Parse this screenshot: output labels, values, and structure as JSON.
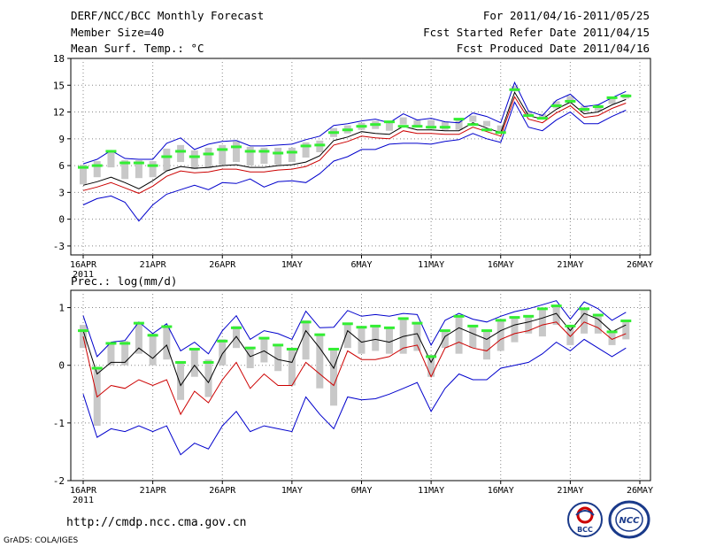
{
  "header": {
    "title": "DERF/NCC/BCC Monthly Forecast",
    "member_size": "Member Size=40",
    "variable": "Mean Surf. Temp.: °C",
    "period": "For 2011/04/16-2011/05/25",
    "started": "Fcst Started Refer Date 2011/04/15",
    "produced": "Fcst Produced Date 2011/04/16"
  },
  "footer": {
    "url": "http://cmdp.ncc.cma.gov.cn",
    "credit": "GrADS: COLA/IGES",
    "logo_left_text": "BCC",
    "logo_right_text": "NCC"
  },
  "colors": {
    "max": "#0000cc",
    "mean": "#000000",
    "min": "#cc0000",
    "bar": "#c8c8c8",
    "median": "#33ee33",
    "grid": "#888888"
  },
  "chart_data": [
    {
      "type": "line",
      "title": "Mean Surf. Temp.: °C",
      "xlabel": "",
      "ylabel": "°C",
      "ylim": [
        -4,
        18
      ],
      "yticks": [
        18,
        15,
        12,
        9,
        6,
        3,
        0,
        -3
      ],
      "x_start_label": "2011",
      "xticks": [
        {
          "day": 0,
          "label": "16APR"
        },
        {
          "day": 5,
          "label": "21APR"
        },
        {
          "day": 10,
          "label": "26APR"
        },
        {
          "day": 15,
          "label": "1MAY"
        },
        {
          "day": 20,
          "label": "6MAY"
        },
        {
          "day": 25,
          "label": "11MAY"
        },
        {
          "day": 30,
          "label": "16MAY"
        },
        {
          "day": 35,
          "label": "21MAY"
        },
        {
          "day": 40,
          "label": "26MAY"
        }
      ],
      "days": [
        0,
        1,
        2,
        3,
        4,
        5,
        6,
        7,
        8,
        9,
        10,
        11,
        12,
        13,
        14,
        15,
        16,
        17,
        18,
        19,
        20,
        21,
        22,
        23,
        24,
        25,
        26,
        27,
        28,
        29,
        30,
        31,
        32,
        33,
        34,
        35,
        36,
        37,
        38,
        39
      ],
      "series": [
        {
          "name": "max",
          "values": [
            6.2,
            6.7,
            7.7,
            6.8,
            6.7,
            6.7,
            8.5,
            9.1,
            7.8,
            8.4,
            8.7,
            8.8,
            8.2,
            8.2,
            8.3,
            8.4,
            8.9,
            9.3,
            10.5,
            10.7,
            11.0,
            11.2,
            10.8,
            11.8,
            11.1,
            11.3,
            10.9,
            10.8,
            11.9,
            11.5,
            10.8,
            15.3,
            12.1,
            11.6,
            13.3,
            14.0,
            12.6,
            12.8,
            13.6,
            14.3
          ]
        },
        {
          "name": "mean",
          "values": [
            3.8,
            4.2,
            4.7,
            4.1,
            3.4,
            4.3,
            5.4,
            5.9,
            5.7,
            5.8,
            6.0,
            6.1,
            5.8,
            5.8,
            6.0,
            6.1,
            6.4,
            7.1,
            8.8,
            9.2,
            9.8,
            9.6,
            9.5,
            10.4,
            10.0,
            10.0,
            9.9,
            9.9,
            10.8,
            10.2,
            9.7,
            14.2,
            11.6,
            11.2,
            12.3,
            13.1,
            11.8,
            12.0,
            12.8,
            13.4
          ]
        },
        {
          "name": "min",
          "values": [
            3.2,
            3.6,
            4.1,
            3.5,
            2.9,
            3.7,
            4.8,
            5.4,
            5.2,
            5.3,
            5.6,
            5.6,
            5.3,
            5.3,
            5.5,
            5.6,
            5.9,
            6.6,
            8.3,
            8.7,
            9.3,
            9.1,
            9.0,
            9.9,
            9.6,
            9.6,
            9.5,
            9.5,
            10.3,
            9.8,
            9.3,
            13.7,
            11.2,
            10.8,
            11.9,
            12.7,
            11.4,
            11.6,
            12.4,
            13.0
          ]
        },
        {
          "name": "lowest",
          "values": [
            1.6,
            2.3,
            2.6,
            1.9,
            -0.2,
            1.6,
            2.8,
            3.3,
            3.8,
            3.3,
            4.1,
            4.0,
            4.5,
            3.6,
            4.2,
            4.3,
            4.1,
            5.1,
            6.5,
            7.0,
            7.8,
            7.8,
            8.4,
            8.5,
            8.5,
            8.4,
            8.7,
            8.9,
            9.6,
            9.0,
            8.6,
            13.1,
            10.3,
            9.9,
            11.1,
            12.0,
            10.7,
            10.7,
            11.5,
            12.2
          ]
        },
        {
          "name": "median",
          "values": [
            5.8,
            6.0,
            7.6,
            6.3,
            6.3,
            6.0,
            7.0,
            7.6,
            7.0,
            7.3,
            7.8,
            8.1,
            7.6,
            7.6,
            7.4,
            7.5,
            8.2,
            8.3,
            9.7,
            10.0,
            10.4,
            10.6,
            10.9,
            10.4,
            10.4,
            10.3,
            10.3,
            11.2,
            10.6,
            10.0,
            9.7,
            14.5,
            11.6,
            11.3,
            12.7,
            13.2,
            12.3,
            12.6,
            13.6,
            13.8
          ]
        }
      ],
      "box_lo": [
        3.9,
        4.7,
        5.8,
        4.5,
        4.6,
        4.7,
        5.4,
        6.4,
        5.6,
        5.7,
        6.1,
        6.4,
        6.0,
        6.2,
        6.1,
        6.4,
        6.9,
        7.5,
        9.2,
        9.6,
        10.0,
        10.1,
        9.9,
        10.6,
        10.3,
        10.1,
        10.0,
        10.0,
        10.9,
        10.4,
        9.8,
        14.3,
        11.7,
        11.3,
        12.4,
        13.2,
        12.0,
        12.1,
        12.9,
        13.5
      ],
      "box_hi": [
        6.1,
        6.5,
        7.7,
        6.6,
        6.6,
        6.5,
        7.9,
        8.3,
        7.7,
        8.0,
        8.3,
        8.7,
        8.1,
        8.0,
        8.0,
        8.0,
        8.6,
        8.8,
        10.2,
        10.5,
        10.8,
        11.0,
        11.0,
        11.4,
        11.1,
        11.1,
        10.9,
        11.2,
        11.6,
        11.0,
        10.5,
        14.9,
        12.1,
        11.8,
        13.2,
        13.8,
        12.7,
        12.8,
        13.7,
        14.0
      ]
    },
    {
      "type": "line",
      "title": "Prec.: log(mm/d)",
      "xlabel": "",
      "ylabel": "log(mm/d)",
      "ylim": [
        -2.0,
        1.3
      ],
      "yticks": [
        1,
        0,
        -1,
        -2
      ],
      "x_start_label": "2011",
      "xticks": [
        {
          "day": 0,
          "label": "16APR"
        },
        {
          "day": 5,
          "label": "21APR"
        },
        {
          "day": 10,
          "label": "26APR"
        },
        {
          "day": 15,
          "label": "1MAY"
        },
        {
          "day": 20,
          "label": "6MAY"
        },
        {
          "day": 25,
          "label": "11MAY"
        },
        {
          "day": 30,
          "label": "16MAY"
        },
        {
          "day": 35,
          "label": "21MAY"
        },
        {
          "day": 40,
          "label": "26MAY"
        }
      ],
      "days": [
        0,
        1,
        2,
        3,
        4,
        5,
        6,
        7,
        8,
        9,
        10,
        11,
        12,
        13,
        14,
        15,
        16,
        17,
        18,
        19,
        20,
        21,
        22,
        23,
        24,
        25,
        26,
        27,
        28,
        29,
        30,
        31,
        32,
        33,
        34,
        35,
        36,
        37,
        38,
        39
      ],
      "series": [
        {
          "name": "max",
          "values": [
            0.86,
            0.15,
            0.4,
            0.43,
            0.75,
            0.55,
            0.72,
            0.25,
            0.4,
            0.2,
            0.6,
            0.86,
            0.45,
            0.6,
            0.55,
            0.45,
            0.94,
            0.65,
            0.66,
            0.95,
            0.85,
            0.88,
            0.85,
            0.9,
            0.88,
            0.35,
            0.78,
            0.9,
            0.8,
            0.75,
            0.85,
            0.93,
            0.98,
            1.05,
            1.12,
            0.8,
            1.1,
            0.98,
            0.78,
            0.92
          ]
        },
        {
          "name": "mean",
          "values": [
            0.6,
            -0.15,
            0.05,
            0.05,
            0.3,
            0.12,
            0.35,
            -0.35,
            0.0,
            -0.3,
            0.2,
            0.5,
            0.15,
            0.25,
            0.1,
            0.05,
            0.6,
            0.3,
            -0.05,
            0.6,
            0.4,
            0.45,
            0.4,
            0.5,
            0.55,
            0.05,
            0.5,
            0.65,
            0.55,
            0.45,
            0.6,
            0.7,
            0.75,
            0.82,
            0.9,
            0.6,
            0.9,
            0.8,
            0.58,
            0.7
          ]
        },
        {
          "name": "min",
          "values": [
            0.5,
            -0.55,
            -0.35,
            -0.4,
            -0.25,
            -0.35,
            -0.25,
            -0.85,
            -0.45,
            -0.65,
            -0.25,
            0.05,
            -0.4,
            -0.15,
            -0.35,
            -0.35,
            0.05,
            -0.15,
            -0.35,
            0.25,
            0.1,
            0.1,
            0.15,
            0.3,
            0.35,
            -0.2,
            0.3,
            0.4,
            0.3,
            0.25,
            0.45,
            0.55,
            0.6,
            0.7,
            0.75,
            0.5,
            0.75,
            0.65,
            0.45,
            0.55
          ]
        },
        {
          "name": "lowest",
          "values": [
            -0.5,
            -1.25,
            -1.1,
            -1.15,
            -1.05,
            -1.15,
            -1.05,
            -1.55,
            -1.35,
            -1.45,
            -1.05,
            -0.8,
            -1.15,
            -1.05,
            -1.1,
            -1.15,
            -0.55,
            -0.85,
            -1.1,
            -0.55,
            -0.6,
            -0.58,
            -0.5,
            -0.4,
            -0.3,
            -0.8,
            -0.4,
            -0.15,
            -0.25,
            -0.25,
            -0.05,
            0.0,
            0.05,
            0.2,
            0.4,
            0.25,
            0.45,
            0.3,
            0.15,
            0.3
          ]
        },
        {
          "name": "median",
          "values": [
            0.6,
            -0.05,
            0.38,
            0.38,
            0.73,
            0.52,
            0.67,
            0.05,
            0.28,
            0.05,
            0.42,
            0.65,
            0.3,
            0.47,
            0.35,
            0.28,
            0.75,
            0.53,
            0.28,
            0.72,
            0.66,
            0.68,
            0.65,
            0.81,
            0.73,
            0.15,
            0.6,
            0.85,
            0.68,
            0.6,
            0.78,
            0.83,
            0.85,
            0.98,
            1.03,
            0.68,
            0.98,
            0.87,
            0.58,
            0.77
          ]
        }
      ],
      "box_lo": [
        0.3,
        -1.05,
        0.0,
        0.0,
        0.2,
        0.0,
        0.1,
        -0.6,
        -0.2,
        -0.55,
        0.0,
        0.3,
        -0.05,
        0.05,
        -0.1,
        -0.35,
        0.1,
        -0.4,
        -0.7,
        0.3,
        0.2,
        0.25,
        0.2,
        0.2,
        0.25,
        -0.2,
        0.3,
        0.2,
        0.3,
        0.1,
        0.25,
        0.4,
        0.55,
        0.5,
        0.7,
        0.35,
        0.55,
        0.55,
        0.35,
        0.45
      ],
      "box_hi": [
        0.7,
        -0.05,
        0.4,
        0.42,
        0.75,
        0.55,
        0.68,
        0.05,
        0.3,
        0.1,
        0.45,
        0.68,
        0.3,
        0.48,
        0.35,
        0.28,
        0.78,
        0.55,
        0.3,
        0.73,
        0.68,
        0.7,
        0.67,
        0.83,
        0.75,
        0.18,
        0.62,
        0.87,
        0.7,
        0.62,
        0.8,
        0.85,
        0.87,
        1.0,
        1.05,
        0.7,
        1.0,
        0.88,
        0.6,
        0.78
      ]
    }
  ]
}
